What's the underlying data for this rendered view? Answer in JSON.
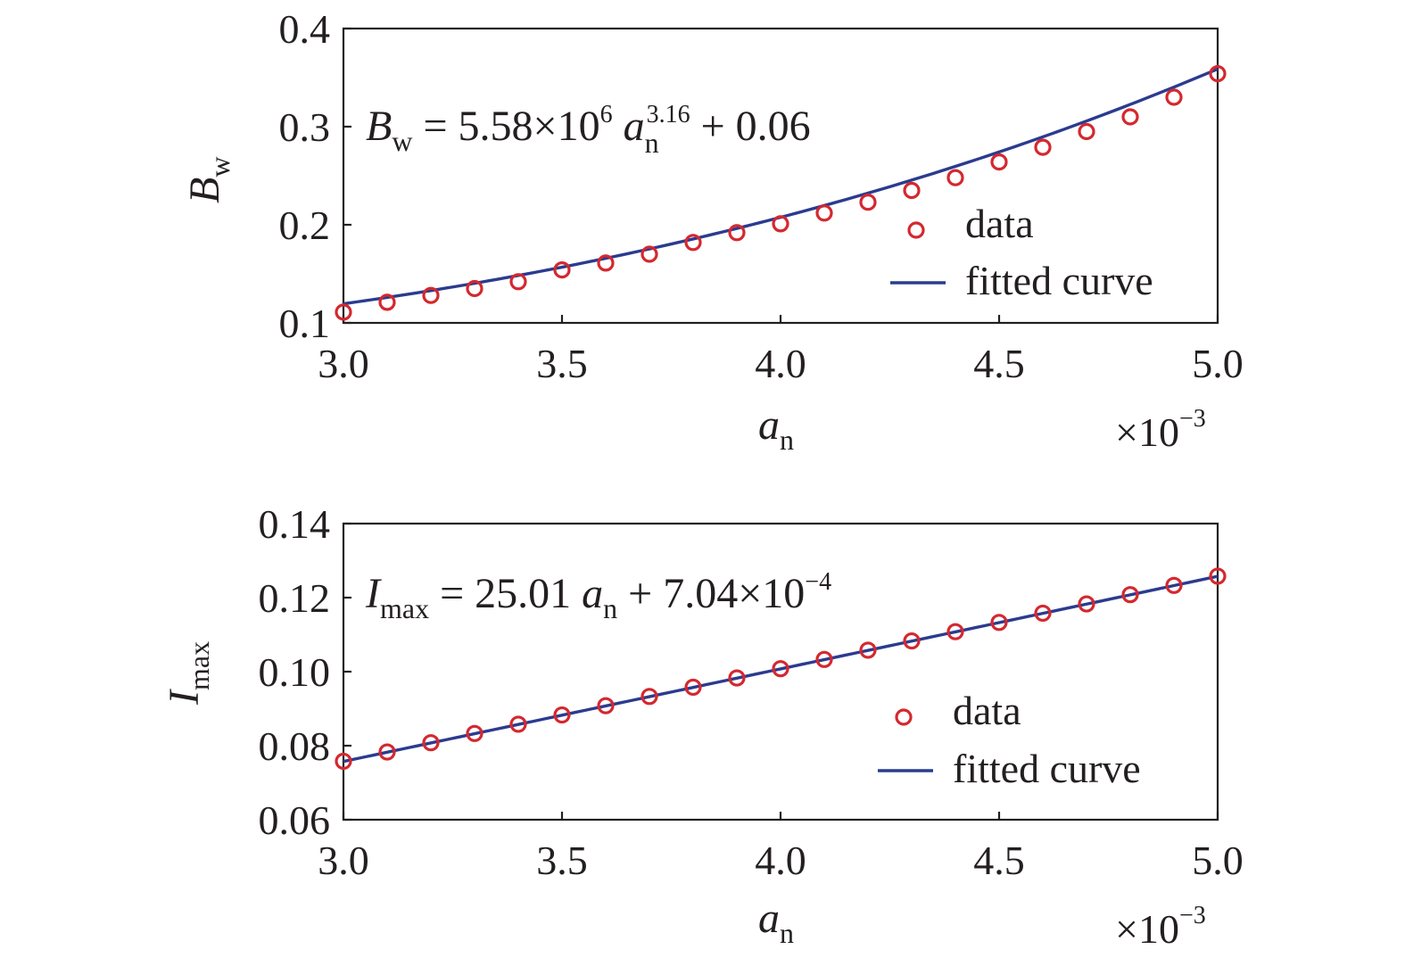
{
  "chart_data": [
    {
      "type": "scatter",
      "title": "",
      "xlabel_main": "a",
      "xlabel_sub": "n",
      "ylabel_main": "B",
      "ylabel_sub": "w",
      "x_multiplier": "×10",
      "x_multiplier_exp": "−3",
      "xlim": [
        3.0,
        5.0
      ],
      "ylim": [
        0.1,
        0.4
      ],
      "x_ticks": [
        "3.0",
        "3.5",
        "4.0",
        "4.5",
        "5.0"
      ],
      "y_ticks": [
        "0.1",
        "0.2",
        "0.3",
        "0.4"
      ],
      "equation": {
        "var_main": "B",
        "var_sub": "w",
        "part1": " = 5.58×10",
        "part1_sup": "6",
        "a_main": "a",
        "a_sub": "n",
        "a_sup": "3.16",
        "part2": " + 0.06"
      },
      "legend": {
        "placement": "bottom-right",
        "data_label": "data",
        "fit_label": "fitted curve"
      },
      "fit": {
        "model": "power",
        "a": 5580000.0,
        "b": 3.16,
        "c": 0.06,
        "x_scale": 0.001
      },
      "series": [
        {
          "name": "data",
          "x": [
            3.0,
            3.1,
            3.2,
            3.3,
            3.4,
            3.5,
            3.6,
            3.7,
            3.8,
            3.9,
            4.0,
            4.1,
            4.2,
            4.3,
            4.4,
            4.5,
            4.6,
            4.7,
            4.8,
            4.9,
            5.0
          ],
          "y": [
            0.111,
            0.121,
            0.128,
            0.135,
            0.142,
            0.154,
            0.161,
            0.17,
            0.182,
            0.192,
            0.201,
            0.212,
            0.223,
            0.235,
            0.248,
            0.264,
            0.279,
            0.295,
            0.31,
            0.33,
            0.354
          ]
        }
      ]
    },
    {
      "type": "scatter",
      "title": "",
      "xlabel_main": "a",
      "xlabel_sub": "n",
      "ylabel_main": "I",
      "ylabel_sub": "max",
      "x_multiplier": "×10",
      "x_multiplier_exp": "−3",
      "xlim": [
        3.0,
        5.0
      ],
      "ylim": [
        0.06,
        0.14
      ],
      "x_ticks": [
        "3.0",
        "3.5",
        "4.0",
        "4.5",
        "5.0"
      ],
      "y_ticks": [
        "0.06",
        "0.08",
        "0.10",
        "0.12",
        "0.14"
      ],
      "equation": {
        "var_main": "I",
        "var_sub": "max",
        "part1": " = 25.01 ",
        "a_main": "a",
        "a_sub": "n",
        "part2": " + 7.04×10",
        "part2_sup": "−4"
      },
      "legend": {
        "placement": "bottom-right",
        "data_label": "data",
        "fit_label": "fitted curve"
      },
      "fit": {
        "model": "linear",
        "slope": 25.01,
        "intercept": 0.000704,
        "x_scale": 0.001
      },
      "series": [
        {
          "name": "data",
          "x": [
            3.0,
            3.1,
            3.2,
            3.3,
            3.4,
            3.5,
            3.6,
            3.7,
            3.8,
            3.9,
            4.0,
            4.1,
            4.2,
            4.3,
            4.4,
            4.5,
            4.6,
            4.7,
            4.8,
            4.9,
            5.0
          ],
          "y": [
            0.0758,
            0.0783,
            0.0808,
            0.0833,
            0.0858,
            0.0883,
            0.0908,
            0.0933,
            0.0958,
            0.0983,
            0.1008,
            0.1033,
            0.1058,
            0.1083,
            0.1108,
            0.1133,
            0.1158,
            0.1183,
            0.1208,
            0.1233,
            0.1258
          ]
        }
      ]
    }
  ]
}
